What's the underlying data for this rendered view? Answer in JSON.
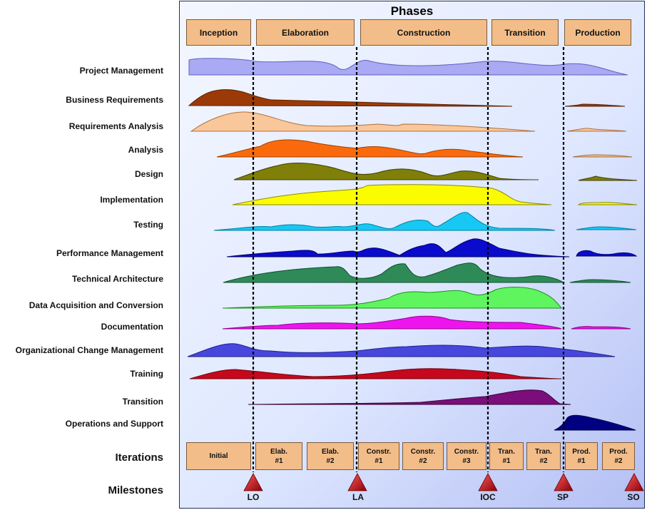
{
  "title": "Phases",
  "phases": [
    "Inception",
    "Elaboration",
    "Construction",
    "Transition",
    "Production"
  ],
  "disciplines": [
    "Project Management",
    "Business Requirements",
    "Requirements Analysis",
    "Analysis",
    "Design",
    "Implementation",
    "Testing",
    "Performance Management",
    "Technical Architecture",
    "Data Acquisition and Conversion",
    "Documentation",
    "Organizational Change Management",
    "Training",
    "Transition",
    "Operations and Support"
  ],
  "iterations_label": "Iterations",
  "iterations": [
    "Initial",
    "Elab.\n#1",
    "Elab.\n#2",
    "Constr.\n#1",
    "Constr.\n#2",
    "Constr.\n#3",
    "Tran.\n#1",
    "Tran.\n#2",
    "Prod.\n#1",
    "Prod.\n#2"
  ],
  "milestones_label": "Milestones",
  "milestones": [
    "LO",
    "LA",
    "IOC",
    "SP",
    "SO"
  ],
  "colors": {
    "phase_box": "#f3bd89",
    "milestone": "#c0141c",
    "project_management": "#a9a9f4",
    "business_requirements": "#9c3a07",
    "requirements_analysis": "#f9c79a",
    "analysis": "#fa6a0c",
    "design": "#7f7f0a",
    "implementation": "#fcfc00",
    "testing": "#17c8f4",
    "performance_management": "#0b0bcd",
    "technical_architecture": "#2e8b57",
    "data_acquisition": "#5ef55e",
    "documentation": "#ee14ee",
    "organizational_change": "#4747de",
    "training": "#c5081c",
    "transition": "#7b0e7b",
    "operations_support": "#000080"
  }
}
